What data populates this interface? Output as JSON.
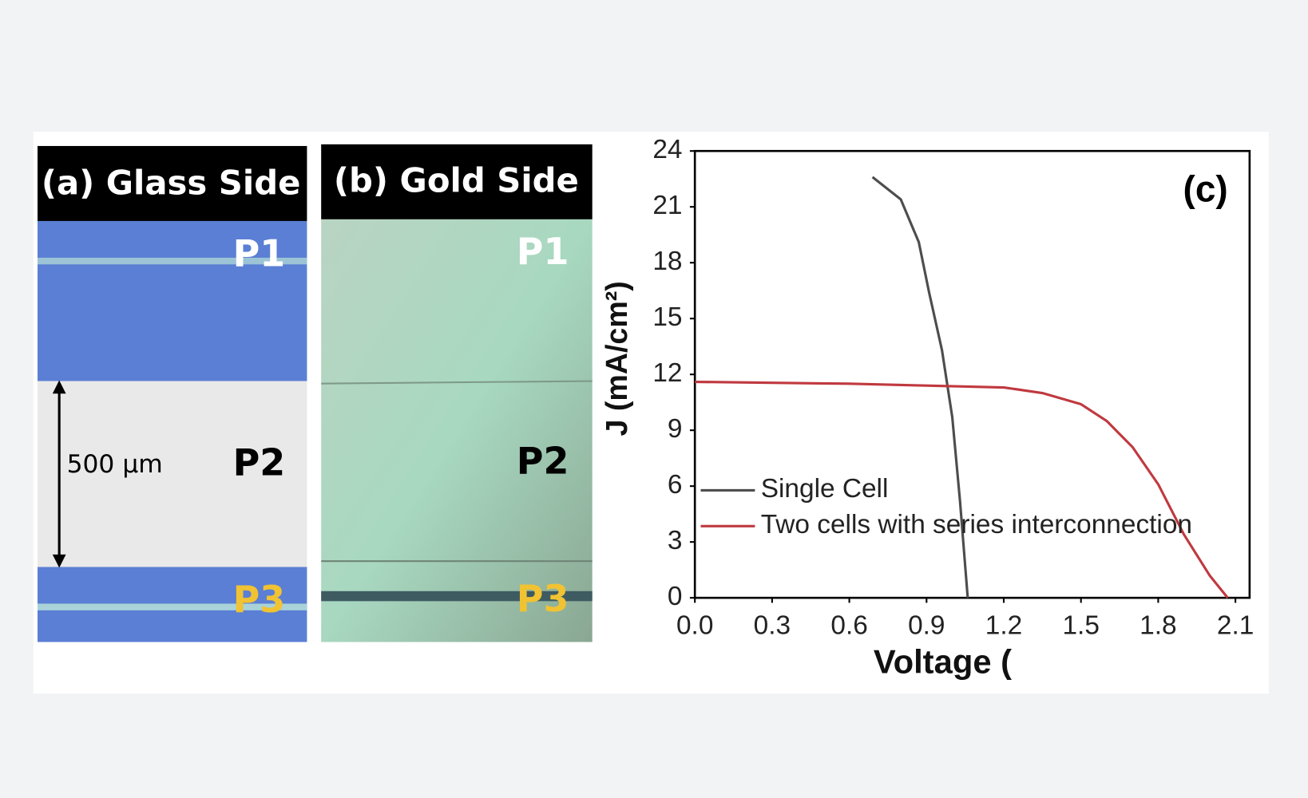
{
  "panels": [
    {
      "title": "(a) Glass Side",
      "labels": [
        "P1",
        "P2",
        "P3"
      ],
      "scale_bar": "500 µm"
    },
    {
      "title": "(b) Gold Side",
      "labels": [
        "P1",
        "P2",
        "P3"
      ]
    }
  ],
  "chart_data": {
    "type": "line",
    "annotation": "(c)",
    "x_label": "Voltage (",
    "y_label": "J (mA/cm²)",
    "xlim": [
      0,
      2.1
    ],
    "xticks": [
      {
        "value": 0,
        "label": "0.0"
      },
      0.3,
      0.6,
      0.9,
      1.2,
      1.5,
      1.8,
      2.1
    ],
    "ylim": [
      0,
      24
    ],
    "yticks": [
      0,
      3,
      6,
      9,
      12,
      15,
      18,
      21,
      24
    ],
    "legend": "lower left",
    "series": [
      {
        "name": "Single Cell",
        "color": "#4d4d4d",
        "x": [
          0.69,
          0.8,
          0.87,
          0.91,
          0.96,
          1.0,
          1.03,
          1.06
        ],
        "values": [
          22.6,
          21.4,
          19.1,
          16.4,
          13.3,
          9.7,
          5.2,
          0
        ]
      },
      {
        "name": "Two cells with series interconnection",
        "color": "#c0393f",
        "x": [
          0,
          0.3,
          0.6,
          0.9,
          1.2,
          1.35,
          1.5,
          1.6,
          1.7,
          1.8,
          1.9,
          2.0,
          2.07
        ],
        "values": [
          11.6,
          11.55,
          11.5,
          11.4,
          11.3,
          11.0,
          10.4,
          9.5,
          8.1,
          6.1,
          3.4,
          1.2,
          0
        ]
      }
    ]
  }
}
